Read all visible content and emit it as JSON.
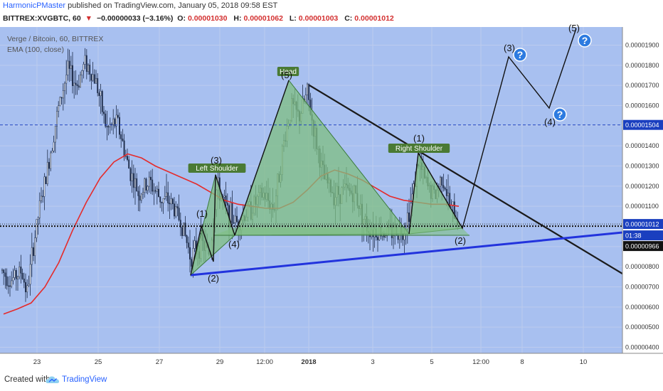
{
  "header": {
    "author": "HarmonicPMaster",
    "published": "published on TradingView.com, January 05, 2018 09:58 EST",
    "symbol": "BITTREX:XVGBTC, 60",
    "change": "−0.00000033 (−3.16%)",
    "ohlc": [
      {
        "k": "O:",
        "v": "0.00001030"
      },
      {
        "k": "H:",
        "v": "0.00001062"
      },
      {
        "k": "L:",
        "v": "0.00001003"
      },
      {
        "k": "C:",
        "v": "0.00001012"
      }
    ]
  },
  "legend": {
    "title": "Verge / Bitcoin, 60, BITTREX",
    "ema": "EMA (100, close)"
  },
  "colors": {
    "plot_bg": "#a8c0f0",
    "candle": "#1e2d4a",
    "ema": "#e52b2b",
    "pattern_fill": "#7fbf82",
    "pattern_edge": "#3a7a3a",
    "trendline": "#1a1a1a",
    "support": "#2233dd",
    "label_bg": "#4a7a34",
    "qmark": "#2d7be0"
  },
  "chart_data": {
    "type": "candlestick",
    "y_axis": {
      "ticks": [
        "0.00000400",
        "0.00000500",
        "0.00000600",
        "0.00000700",
        "0.00000800",
        "0.00000900",
        "0.00001000",
        "0.00001100",
        "0.00001200",
        "0.00001300",
        "0.00001400",
        "0.00001500",
        "0.00001600",
        "0.00001700",
        "0.00001800",
        "0.00001900"
      ],
      "range": [
        3.7e-06,
        1.99e-05
      ]
    },
    "x_axis": {
      "ticks": [
        "23",
        "25",
        "27",
        "29",
        "12:00",
        "2018",
        "3",
        "5",
        "12:00",
        "8",
        "10"
      ]
    },
    "price_labels": [
      {
        "text": "0.00001504",
        "value": 1.504e-05,
        "style": "blue"
      },
      {
        "text": "0.00001012",
        "value": 1.012e-05,
        "style": "blue"
      },
      {
        "text": "01:38",
        "style": "blue"
      },
      {
        "text": "0.00000966",
        "value": 9.66e-06,
        "style": "black"
      }
    ],
    "ema_series": [
      [
        5.65e-06,
        5.9e-06,
        6.2e-06,
        7e-06,
        8.2e-06,
        9.8e-06,
        1.12e-05,
        1.24e-05,
        1.32e-05,
        1.36e-05,
        1.34e-05,
        1.3e-05,
        1.27e-05,
        1.24e-05,
        1.21e-05,
        1.17e-05,
        1.13e-05,
        1.11e-05,
        1.1e-05,
        1.09e-05,
        1.09e-05,
        1.12e-05,
        1.18e-05,
        1.25e-05,
        1.28e-05,
        1.26e-05,
        1.23e-05,
        1.19e-05,
        1.15e-05,
        1.13e-05,
        1.12e-05,
        1.11e-05,
        1.11e-05,
        1.1e-05
      ]
    ],
    "annotations": [
      {
        "text": "Left Shoulder",
        "type": "label"
      },
      {
        "text": "Head",
        "type": "label"
      },
      {
        "text": "Right Shoulder",
        "type": "label"
      },
      {
        "text": "(1)",
        "type": "wave"
      },
      {
        "text": "(2)",
        "type": "wave"
      },
      {
        "text": "(3)",
        "type": "wave"
      },
      {
        "text": "(4)",
        "type": "wave"
      },
      {
        "text": "(5)",
        "type": "wave"
      },
      {
        "text": "(1)",
        "type": "wave"
      },
      {
        "text": "(2)",
        "type": "wave"
      },
      {
        "text": "(3)",
        "type": "wave"
      },
      {
        "text": "(4)",
        "type": "wave"
      },
      {
        "text": "(2)",
        "type": "wave"
      },
      {
        "text": "(5)",
        "type": "wave"
      }
    ]
  },
  "footer": {
    "created": "Created with",
    "brand": "TradingView"
  }
}
